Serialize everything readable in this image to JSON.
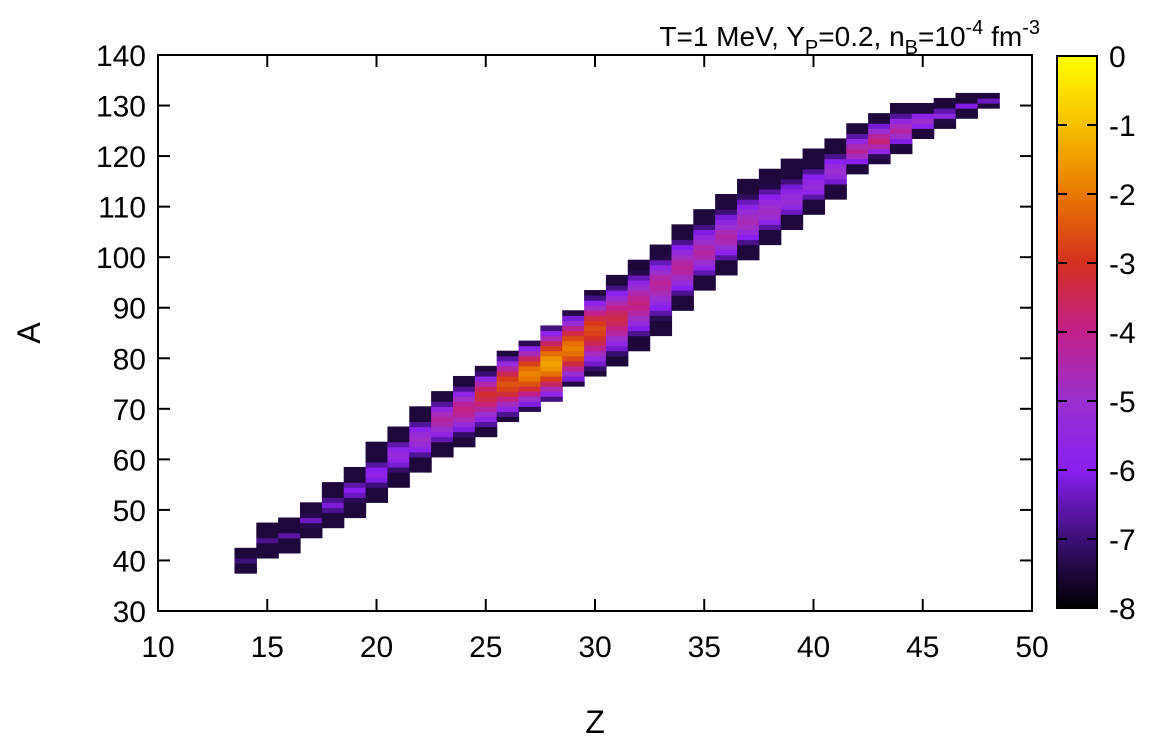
{
  "chart_data": {
    "type": "heatmap",
    "title_parts": {
      "a": "T=1 MeV, Y",
      "a_sub": "P",
      "b": "=0.2, n",
      "b_sub": "B",
      "c": "=10",
      "c_sup": "-4",
      "d": " fm",
      "d_sup": "-3"
    },
    "xlabel": "Z",
    "ylabel": "A",
    "xlim": [
      10,
      50
    ],
    "ylim": [
      30,
      140
    ],
    "xticks": [
      10,
      15,
      20,
      25,
      30,
      35,
      40,
      45,
      50
    ],
    "yticks": [
      30,
      40,
      50,
      60,
      70,
      80,
      90,
      100,
      110,
      120,
      130,
      140
    ],
    "colorbar": {
      "range": [
        -8,
        0
      ],
      "ticks": [
        0,
        -1,
        -2,
        -3,
        -4,
        -5,
        -6,
        -7,
        -8
      ],
      "colormap": [
        "#000000",
        "#3c0f76",
        "#8a1ff0",
        "#9a30d0",
        "#c0208a",
        "#d43020",
        "#e87800",
        "#f8c000",
        "#ffff00"
      ]
    },
    "band": {
      "z": [
        14,
        15,
        16,
        17,
        18,
        19,
        20,
        21,
        22,
        23,
        24,
        25,
        26,
        27,
        28,
        29,
        30,
        31,
        32,
        33,
        34,
        35,
        36,
        37,
        38,
        39,
        40,
        41,
        42,
        43,
        44,
        45,
        46,
        47,
        48
      ],
      "a_low": [
        38,
        41,
        42,
        45,
        47,
        49,
        52,
        55,
        58,
        61,
        63,
        65,
        68,
        70,
        72,
        75,
        77,
        79,
        82,
        85,
        90,
        94,
        97,
        100,
        103,
        106,
        109,
        112,
        117,
        119,
        121,
        124,
        126,
        128,
        130
      ],
      "a_high": [
        42,
        47,
        48,
        51,
        55,
        58,
        63,
        66,
        70,
        73,
        76,
        78,
        81,
        83,
        86,
        89,
        93,
        96,
        99,
        102,
        106,
        109,
        112,
        115,
        117,
        119,
        121,
        123,
        126,
        128,
        130,
        130,
        131,
        132,
        132
      ],
      "a_peak": [
        40,
        44,
        45,
        48,
        51,
        54,
        57,
        61,
        64,
        68,
        70,
        73,
        75,
        77,
        79,
        82,
        86,
        88,
        91,
        95,
        98,
        101,
        104,
        107,
        109,
        111,
        114,
        117,
        121,
        123,
        125,
        127,
        128,
        130,
        131
      ],
      "log_max": [
        -7,
        -6.8,
        -6.6,
        -6.4,
        -6.2,
        -6,
        -5.7,
        -5.3,
        -4.9,
        -4.3,
        -3.9,
        -3.2,
        -2.5,
        -1.8,
        -1.4,
        -1.9,
        -2.6,
        -3.4,
        -3.9,
        -4.2,
        -4.2,
        -4.3,
        -4.4,
        -4.6,
        -4.8,
        -5.1,
        -5.3,
        -5,
        -4.2,
        -3.8,
        -4.3,
        -4.9,
        -5.6,
        -6.1,
        -6.4
      ]
    }
  }
}
